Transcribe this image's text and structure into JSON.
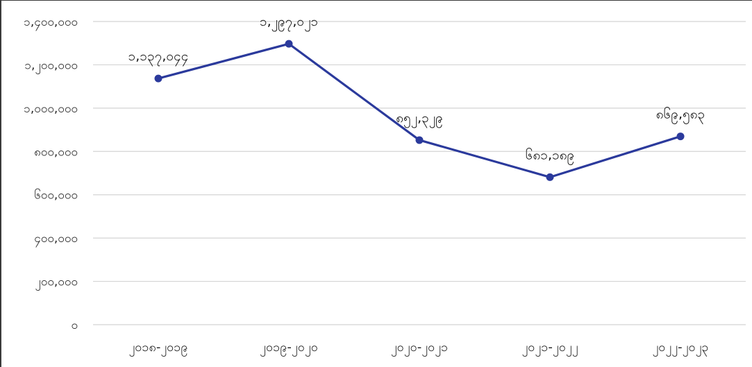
{
  "chart_data": {
    "type": "line",
    "title": "",
    "xlabel": "",
    "ylabel": "",
    "categories": [
      "၂၀၁၈-၂၀၁၉",
      "၂၀၁၉-၂၀၂၀",
      "၂၀၂၀-၂၀၂၁",
      "၂၀၂၁-၂၀၂၂",
      "၂၀၂၂-၂၀၂၃"
    ],
    "series": [
      {
        "values": [
          1137044,
          1297021,
          852329,
          681189,
          869583
        ]
      }
    ],
    "value_labels": [
      "၁,၁၃၇,၀၄၄",
      "၁,၂၉၇,၀၂၁",
      "၈၅၂,၃၂၉",
      "၆၈၁,၁၈၉",
      "၈၆၉,၅၈၃"
    ],
    "ylim": [
      0,
      1600000
    ],
    "yticks": [
      0,
      200000,
      400000,
      600000,
      800000,
      1000000,
      1200000,
      1400000
    ],
    "ytick_labels": [
      "၀",
      "၂၀၀,၀၀၀",
      "၄၀၀,၀၀၀",
      "၆၀၀,၀၀၀",
      "၈၀၀,၀၀၀",
      "၁,၀၀၀,၀၀၀",
      "၁,၂၀၀,၀၀၀",
      "၁,၄၀၀,၀၀၀"
    ],
    "grid": true,
    "colors": {
      "line": "#2b3a9c",
      "grid": "#d4d4d4",
      "text": "#222222"
    }
  }
}
